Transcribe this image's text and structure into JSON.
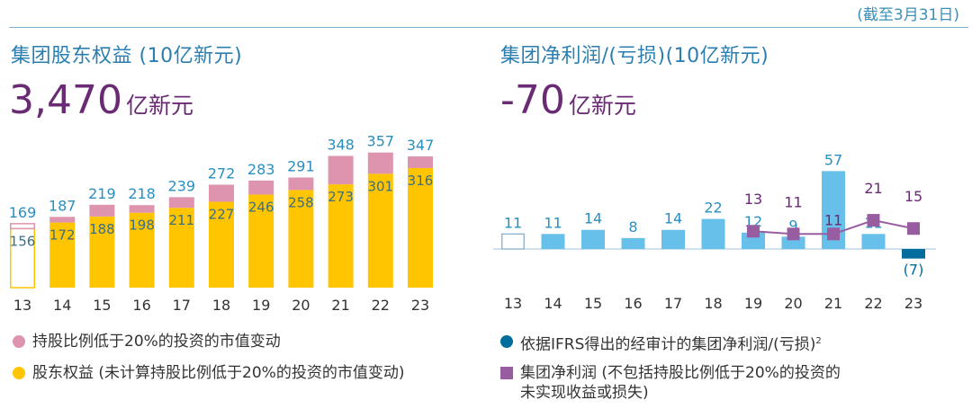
{
  "as_of": "(截至3月31日)",
  "colors": {
    "equity_bar": "#ffc500",
    "fair_value_bar": "#de93ae",
    "net_income_bar": "#67c0ea",
    "loss_bar": "#006d9c",
    "adjusted_line": "#985ca0",
    "value_label": "#2a8fc0",
    "inner_label": "#3a6d86",
    "headline": "#6a2a74"
  },
  "left": {
    "title": "集团股东权益 (10亿新元)",
    "headline_value": "3,470",
    "headline_unit": "亿新元",
    "chart_data": {
      "type": "bar",
      "stacked": true,
      "categories": [
        "13",
        "14",
        "15",
        "16",
        "17",
        "18",
        "19",
        "20",
        "21",
        "22",
        "23"
      ],
      "series": [
        {
          "name": "股东权益 (未计算持股比例低于20%的投资的市值变动)",
          "values": [
            156,
            172,
            188,
            198,
            211,
            227,
            246,
            258,
            273,
            301,
            316
          ]
        },
        {
          "name": "持股比例低于20%的投资的市值变动",
          "values": [
            13,
            15,
            31,
            20,
            28,
            45,
            37,
            33,
            75,
            56,
            31
          ]
        }
      ],
      "totals": [
        169,
        187,
        219,
        218,
        239,
        272,
        283,
        291,
        348,
        357,
        347
      ],
      "first_bar_outline": true,
      "ylim": [
        0,
        380
      ]
    },
    "legend": [
      {
        "label": "持股比例低于20%的投资的市值变动",
        "color": "#de93ae",
        "shape": "circle"
      },
      {
        "label": "股东权益 (未计算持股比例低于20%的投资的市值变动)",
        "color": "#ffc500",
        "shape": "circle"
      }
    ]
  },
  "right": {
    "title": "集团净利润/(亏损)(10亿新元)",
    "headline_value": "-70",
    "headline_unit": "亿新元",
    "chart_data": {
      "type": "bar",
      "categories": [
        "13",
        "14",
        "15",
        "16",
        "17",
        "18",
        "19",
        "20",
        "21",
        "22",
        "23"
      ],
      "series": [
        {
          "name": "依据IFRS得出的经审计的集团净利润/(亏损)",
          "values": [
            11,
            11,
            14,
            8,
            14,
            22,
            12,
            9,
            57,
            11,
            -7
          ]
        },
        {
          "name": "集团净利润 (不包括持股比例低于20%的投资的未实现收益或损失)",
          "type": "line",
          "x": [
            "19",
            "20",
            "21",
            "22",
            "23"
          ],
          "values": [
            13,
            11,
            11,
            21,
            15
          ]
        }
      ],
      "value_labels": [
        "11",
        "11",
        "14",
        "8",
        "14",
        "22",
        "12",
        "9",
        "57",
        "11",
        "(7)"
      ],
      "first_bar_outline": true,
      "ylim": [
        -15,
        62
      ]
    },
    "legend": [
      {
        "label": "依据IFRS得出的经审计的集团净利润/(亏损)",
        "sup": "2",
        "color": "#006d9c",
        "shape": "circle"
      },
      {
        "label": "集团净利润 (不包括持股比例低于20%的投资的",
        "label2": "未实现收益或损失)",
        "color": "#985ca0",
        "shape": "square"
      }
    ]
  }
}
